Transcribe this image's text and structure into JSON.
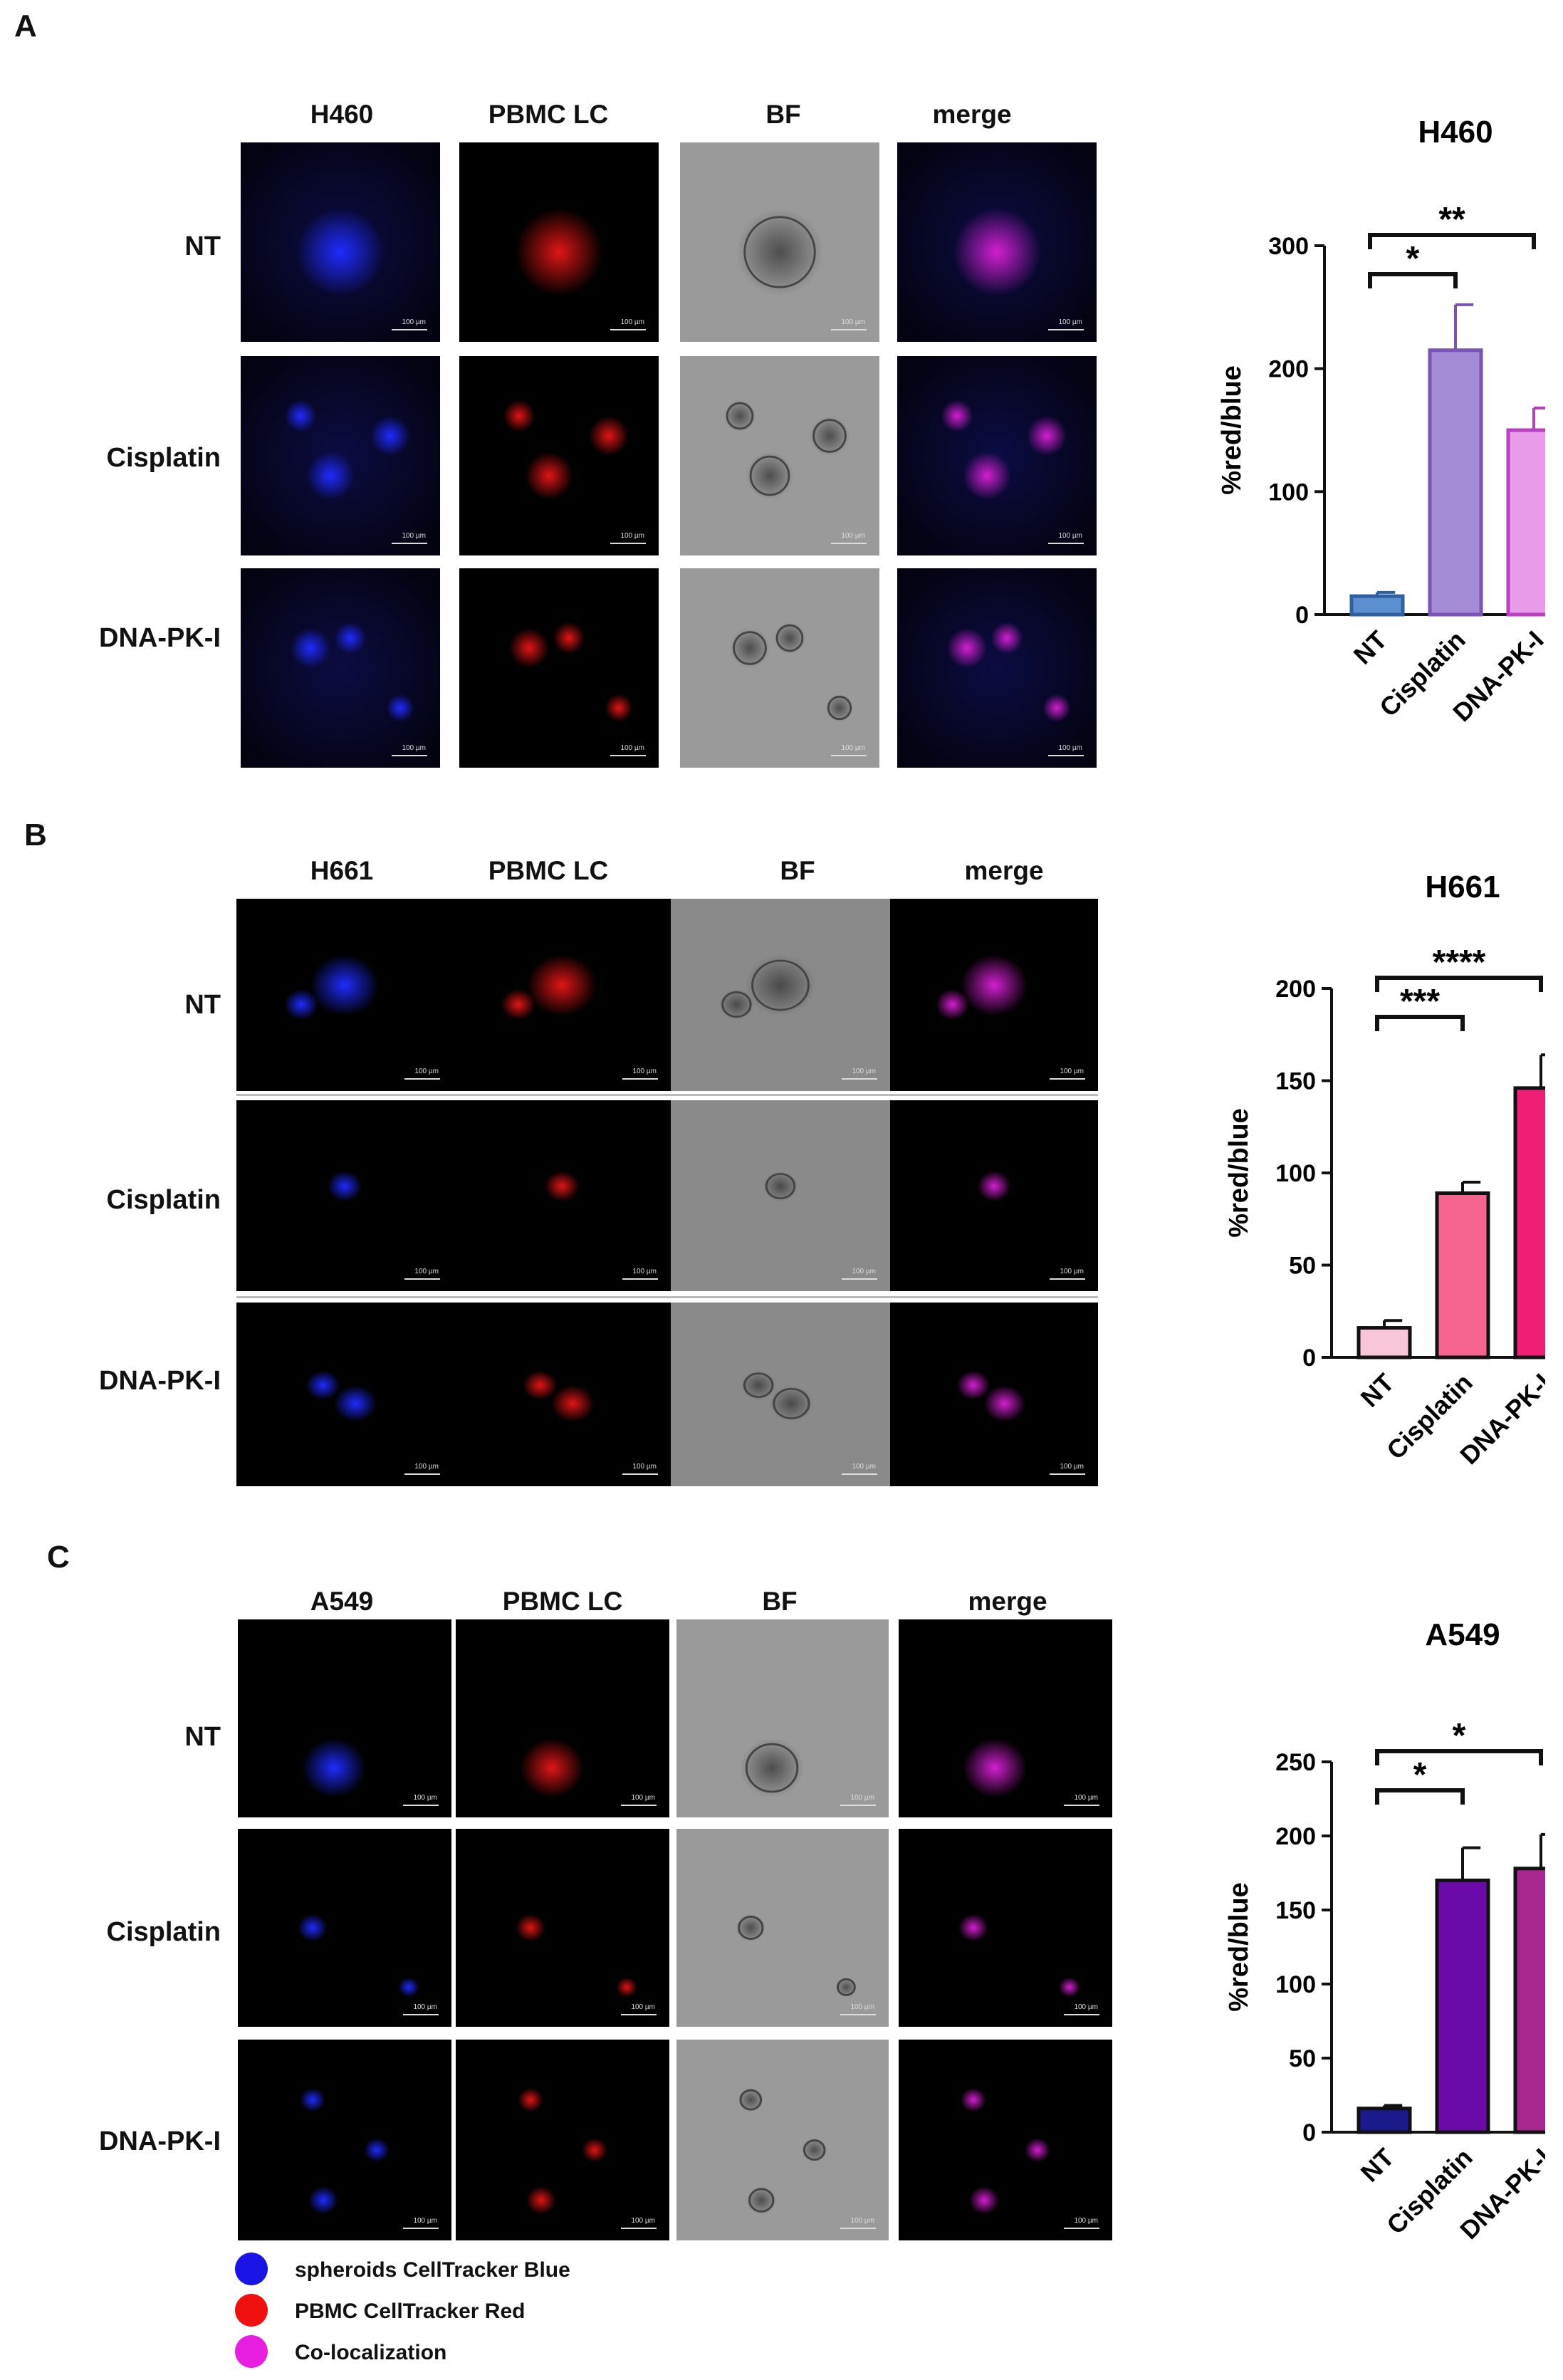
{
  "panels": [
    {
      "letter": "A",
      "columns": [
        "H460",
        "PBMC LC",
        "BF",
        "merge"
      ],
      "rows": [
        "NT",
        "Cisplatin",
        "DNA-PK-I"
      ],
      "scale_label": "100 µm",
      "chart_data": {
        "type": "bar",
        "title": "H460",
        "ylabel": "%red/blue",
        "categories": [
          "NT",
          "Cisplatin",
          "DNA-PK-I"
        ],
        "values": [
          15,
          215,
          150
        ],
        "errors": [
          3,
          37,
          18
        ],
        "ylim": [
          0,
          300
        ],
        "yticks": [
          0,
          100,
          200,
          300
        ],
        "colors": [
          "#5b8fd0",
          "#a38bd6",
          "#e89be8"
        ],
        "edge_colors": [
          "#2e5fa0",
          "#7b52b8",
          "#b93fc0"
        ],
        "significance": [
          {
            "from": 0,
            "to": 1,
            "label": "*"
          },
          {
            "from": 0,
            "to": 2,
            "label": "**"
          }
        ]
      }
    },
    {
      "letter": "B",
      "columns": [
        "H661",
        "PBMC LC",
        "BF",
        "merge"
      ],
      "rows": [
        "NT",
        "Cisplatin",
        "DNA-PK-I"
      ],
      "scale_label": "100 µm",
      "chart_data": {
        "type": "bar",
        "title": "H661",
        "ylabel": "%red/blue",
        "categories": [
          "NT",
          "Cisplatin",
          "DNA-PK-I"
        ],
        "values": [
          16,
          89,
          146
        ],
        "errors": [
          4,
          6,
          18
        ],
        "ylim": [
          0,
          200
        ],
        "yticks": [
          0,
          50,
          100,
          150,
          200
        ],
        "colors": [
          "#f9c5d8",
          "#f5658f",
          "#f01f76"
        ],
        "edge_colors": [
          "#111111",
          "#111111",
          "#111111"
        ],
        "significance": [
          {
            "from": 0,
            "to": 1,
            "label": "***"
          },
          {
            "from": 0,
            "to": 2,
            "label": "****"
          }
        ]
      }
    },
    {
      "letter": "C",
      "columns": [
        "A549",
        "PBMC LC",
        "BF",
        "merge"
      ],
      "rows": [
        "NT",
        "Cisplatin",
        "DNA-PK-I"
      ],
      "scale_label": "100 µm",
      "chart_data": {
        "type": "bar",
        "title": "A549",
        "ylabel": "%red/blue",
        "categories": [
          "NT",
          "Cisplatin",
          "DNA-PK-I"
        ],
        "values": [
          16,
          170,
          178
        ],
        "errors": [
          2,
          22,
          23
        ],
        "ylim": [
          0,
          250
        ],
        "yticks": [
          0,
          50,
          100,
          150,
          200,
          250
        ],
        "colors": [
          "#1a1a8c",
          "#6a0aa8",
          "#a8278f"
        ],
        "edge_colors": [
          "#111111",
          "#111111",
          "#111111"
        ],
        "significance": [
          {
            "from": 0,
            "to": 1,
            "label": "*"
          },
          {
            "from": 0,
            "to": 2,
            "label": "*"
          }
        ]
      }
    }
  ],
  "legend": [
    {
      "label": "spheroids CellTracker Blue",
      "color": "#1a14e6"
    },
    {
      "label": "PBMC CellTracker Red",
      "color": "#f01010"
    },
    {
      "label": "Co-localization",
      "color": "#e81fe0"
    }
  ]
}
